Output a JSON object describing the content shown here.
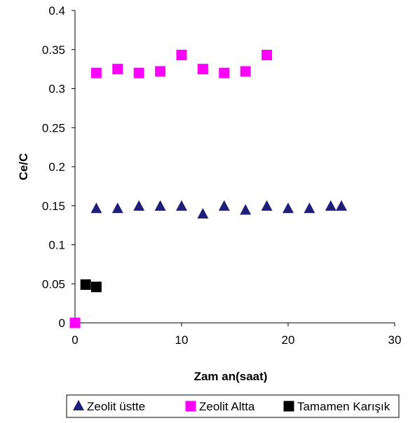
{
  "chart_data": {
    "type": "scatter",
    "xlabel": "Zam an(saat)",
    "ylabel": "Ce/C",
    "xlim": [
      0,
      30
    ],
    "ylim": [
      0,
      0.4
    ],
    "x_ticks": [
      0,
      10,
      20,
      30
    ],
    "x_tick_labels": [
      "0",
      "10",
      "20",
      "30"
    ],
    "y_ticks": [
      0,
      0.05,
      0.1,
      0.15,
      0.2,
      0.25,
      0.3,
      0.35,
      0.4
    ],
    "y_tick_labels": [
      "0",
      "0.05",
      "0.1",
      "0.15",
      "0.2",
      "0.25",
      "0.3",
      "0.35",
      "0.4"
    ],
    "grid": false,
    "legend_position": "bottom",
    "series": [
      {
        "name": "Zeolit üstte",
        "marker": "triangle",
        "color": "#1F1F7A",
        "points": [
          [
            0,
            0
          ],
          [
            2,
            0.146
          ],
          [
            4,
            0.146
          ],
          [
            6,
            0.149
          ],
          [
            8,
            0.149
          ],
          [
            10,
            0.149
          ],
          [
            12,
            0.139
          ],
          [
            14,
            0.149
          ],
          [
            16,
            0.144
          ],
          [
            18,
            0.149
          ],
          [
            20,
            0.146
          ],
          [
            22,
            0.146
          ],
          [
            24,
            0.149
          ],
          [
            25,
            0.149
          ]
        ]
      },
      {
        "name": "Zeolit Altta",
        "marker": "square",
        "color": "#FF00FF",
        "points": [
          [
            0,
            0
          ],
          [
            2,
            0.32
          ],
          [
            4,
            0.325
          ],
          [
            6,
            0.32
          ],
          [
            8,
            0.322
          ],
          [
            10,
            0.343
          ],
          [
            12,
            0.325
          ],
          [
            14,
            0.32
          ],
          [
            16,
            0.322
          ],
          [
            18,
            0.343
          ]
        ]
      },
      {
        "name": "Tamamen Karışık",
        "marker": "square",
        "color": "#000000",
        "points": [
          [
            1,
            0.049
          ],
          [
            2,
            0.046
          ]
        ]
      }
    ]
  }
}
